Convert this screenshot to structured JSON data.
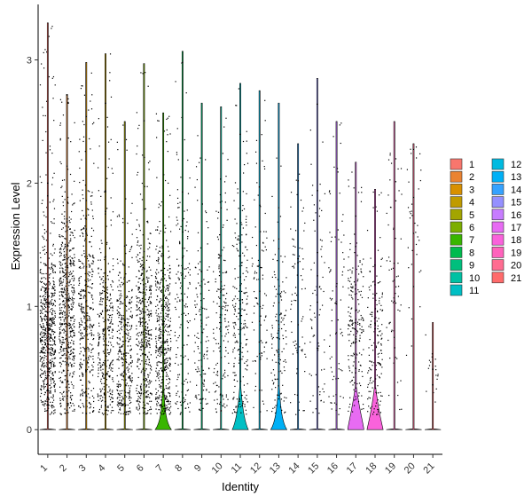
{
  "chart_data": {
    "type": "violin",
    "xlabel": "Identity",
    "ylabel": "Expression Level",
    "ylim": [
      -0.2,
      3.45
    ],
    "yticks": [
      0,
      1,
      2,
      3
    ],
    "grid": false,
    "legend_placement": "right",
    "legend_columns": 2,
    "categories": [
      "1",
      "2",
      "3",
      "4",
      "5",
      "6",
      "7",
      "8",
      "9",
      "10",
      "11",
      "12",
      "13",
      "14",
      "15",
      "16",
      "17",
      "18",
      "19",
      "20",
      "21"
    ],
    "colors": [
      "#F8766D",
      "#EA8331",
      "#D89000",
      "#C09B00",
      "#A3A500",
      "#7CAE00",
      "#39B600",
      "#00BB4E",
      "#00BF7D",
      "#00C1A3",
      "#00BFC4",
      "#00BAE0",
      "#00B0F6",
      "#35A2FF",
      "#9590FF",
      "#C77CFF",
      "#E76BF3",
      "#FA62DB",
      "#FF62BC",
      "#FF6C91",
      "#FF6B6B"
    ],
    "series": [
      {
        "cluster": "1",
        "max": 3.3,
        "density": 1.0,
        "violin_width": 0.0,
        "point_center": 0.75,
        "point_spread": 0.35
      },
      {
        "cluster": "2",
        "max": 2.72,
        "density": 0.9,
        "violin_width": 0.0,
        "point_center": 0.9,
        "point_spread": 0.45
      },
      {
        "cluster": "3",
        "max": 2.98,
        "density": 0.6,
        "violin_width": 0.0,
        "point_center": 0.9,
        "point_spread": 0.5
      },
      {
        "cluster": "4",
        "max": 3.05,
        "density": 0.55,
        "violin_width": 0.0,
        "point_center": 0.7,
        "point_spread": 0.45
      },
      {
        "cluster": "5",
        "max": 2.5,
        "density": 0.55,
        "violin_width": 0.0,
        "point_center": 0.55,
        "point_spread": 0.4
      },
      {
        "cluster": "6",
        "max": 2.97,
        "density": 0.7,
        "violin_width": 0.0,
        "point_center": 0.75,
        "point_spread": 0.45
      },
      {
        "cluster": "7",
        "max": 2.57,
        "density": 0.75,
        "violin_width": 0.35,
        "point_center": 0.7,
        "point_spread": 0.4
      },
      {
        "cluster": "8",
        "max": 3.07,
        "density": 0.25,
        "violin_width": 0.0,
        "point_center": 0.9,
        "point_spread": 0.6
      },
      {
        "cluster": "9",
        "max": 2.65,
        "density": 0.2,
        "violin_width": 0.0,
        "point_center": 0.8,
        "point_spread": 0.5
      },
      {
        "cluster": "10",
        "max": 2.62,
        "density": 0.25,
        "violin_width": 0.0,
        "point_center": 0.85,
        "point_spread": 0.5
      },
      {
        "cluster": "11",
        "max": 2.81,
        "density": 0.35,
        "violin_width": 0.55,
        "point_center": 0.9,
        "point_spread": 0.5
      },
      {
        "cluster": "12",
        "max": 2.75,
        "density": 0.15,
        "violin_width": 0.0,
        "point_center": 1.0,
        "point_spread": 0.6
      },
      {
        "cluster": "13",
        "max": 2.65,
        "density": 0.2,
        "violin_width": 0.45,
        "point_center": 0.7,
        "point_spread": 0.4
      },
      {
        "cluster": "14",
        "max": 2.32,
        "density": 0.12,
        "violin_width": 0.0,
        "point_center": 1.0,
        "point_spread": 0.6
      },
      {
        "cluster": "15",
        "max": 2.85,
        "density": 0.12,
        "violin_width": 0.0,
        "point_center": 1.0,
        "point_spread": 0.6
      },
      {
        "cluster": "16",
        "max": 2.5,
        "density": 0.12,
        "violin_width": 0.0,
        "point_center": 1.0,
        "point_spread": 0.6
      },
      {
        "cluster": "17",
        "max": 2.17,
        "density": 0.3,
        "violin_width": 0.9,
        "point_center": 0.8,
        "point_spread": 0.4
      },
      {
        "cluster": "18",
        "max": 1.95,
        "density": 0.25,
        "violin_width": 0.8,
        "point_center": 0.65,
        "point_spread": 0.35
      },
      {
        "cluster": "19",
        "max": 2.5,
        "density": 0.1,
        "violin_width": 0.0,
        "point_center": 1.0,
        "point_spread": 0.6
      },
      {
        "cluster": "20",
        "max": 2.32,
        "density": 0.06,
        "violin_width": 0.0,
        "point_center": 1.6,
        "point_spread": 0.5
      },
      {
        "cluster": "21",
        "max": 0.87,
        "density": 0.03,
        "violin_width": 0.0,
        "point_center": 0.4,
        "point_spread": 0.2
      }
    ]
  }
}
